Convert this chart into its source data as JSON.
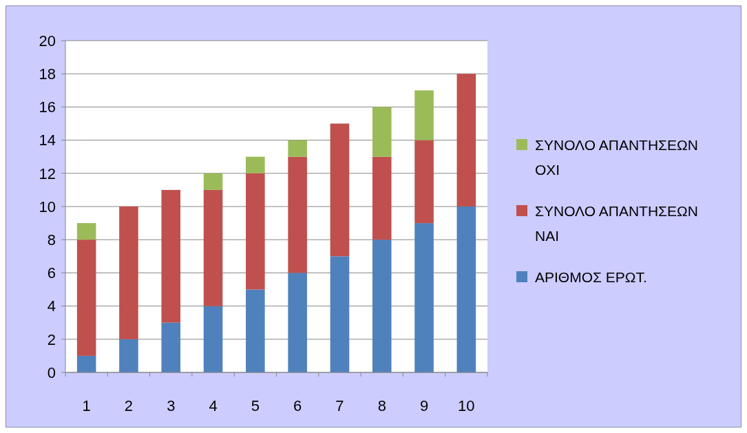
{
  "chart_data": {
    "type": "bar",
    "stacked": true,
    "categories": [
      "1",
      "2",
      "3",
      "4",
      "5",
      "6",
      "7",
      "8",
      "9",
      "10"
    ],
    "series": [
      {
        "name": "ΑΡΙΘΜΟΣ ΕΡΩΤ.",
        "color": "#4f81bd",
        "values": [
          1,
          2,
          3,
          4,
          5,
          6,
          7,
          8,
          9,
          10
        ]
      },
      {
        "name": "ΣΥΝΟΛΟ ΑΠΑΝΤΗΣΕΩΝ ΝΑΙ",
        "color": "#c0504d",
        "values": [
          7,
          8,
          8,
          7,
          7,
          7,
          8,
          5,
          5,
          8
        ]
      },
      {
        "name": "ΣΥΝΟΛΟ ΑΠΑΝΤΗΣΕΩΝ ΟΧΙ",
        "color": "#9bbb59",
        "values": [
          1,
          0,
          0,
          1,
          1,
          1,
          0,
          3,
          3,
          0
        ]
      }
    ],
    "ylim": [
      0,
      20
    ],
    "yticks": [
      0,
      2,
      4,
      6,
      8,
      10,
      12,
      14,
      16,
      18,
      20
    ],
    "grid": "y",
    "legend": "right"
  }
}
